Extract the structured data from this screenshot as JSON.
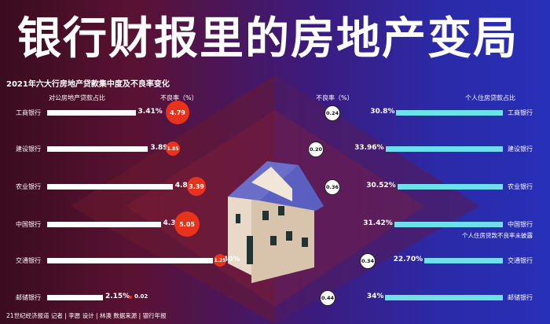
{
  "title": "银行财报里的房地产变局",
  "subtitle": "2021年六大行房地产贷款集中度及不良率变化",
  "headers": {
    "left_share": "对公房地产贷款占比",
    "left_npl": "不良率（%）",
    "right_npl": "不良率（%）",
    "right_share": "个人住房贷款占比"
  },
  "left_rows": [
    {
      "bank": "工商银行",
      "share": "3.41%",
      "share_value": 3.41,
      "npl": "4.79",
      "npl_value": 4.79
    },
    {
      "bank": "建设银行",
      "share": "3.89%",
      "share_value": 3.89,
      "npl": "1.85",
      "npl_value": 1.85
    },
    {
      "bank": "农业银行",
      "share": "4.84%",
      "share_value": 4.84,
      "npl": "3.39",
      "npl_value": 3.39
    },
    {
      "bank": "中国银行",
      "share": "4.38%",
      "share_value": 4.38,
      "npl": "5.05",
      "npl_value": 5.05
    },
    {
      "bank": "交通银行",
      "share": "6.40%",
      "share_value": 6.4,
      "npl": "1.25",
      "npl_value": 1.25
    },
    {
      "bank": "邮储银行",
      "share": "2.15%",
      "share_value": 2.15,
      "npl": "0.02",
      "npl_value": 0.02
    }
  ],
  "right_rows": [
    {
      "bank": "工商银行",
      "share": "30.8%",
      "share_value": 30.8,
      "npl": "0.24"
    },
    {
      "bank": "建设银行",
      "share": "33.96%",
      "share_value": 33.96,
      "npl": "0.20"
    },
    {
      "bank": "农业银行",
      "share": "30.52%",
      "share_value": 30.52,
      "npl": "0.36"
    },
    {
      "bank": "中国银行",
      "share": "31.42%",
      "share_value": 31.42,
      "npl": ""
    },
    {
      "bank": "交通银行",
      "share": "22.70%",
      "share_value": 22.7,
      "npl": "0.34"
    },
    {
      "bank": "邮储银行",
      "share": "34%",
      "share_value": 34.0,
      "npl": "0.44"
    }
  ],
  "boc_note": "个人住房贷款不良率未披露",
  "footer": "21世纪经济报道 记者 | 李愿  设计 | 林澳  数据来源 | 银行年报",
  "colors": {
    "left_bar": "#ffffff",
    "right_bar": "#6fe0ea",
    "bubble_red": "#e8321c"
  }
}
